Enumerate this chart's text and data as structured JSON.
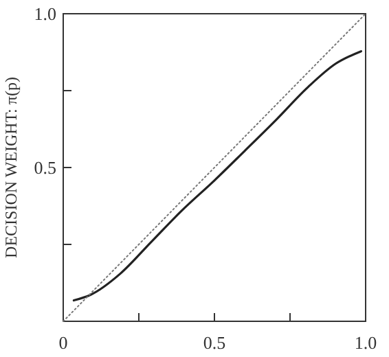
{
  "chart_data": {
    "type": "line",
    "ylabel": "DECISION WEIGHT: π(p)",
    "xlim": [
      0,
      1
    ],
    "ylim": [
      0,
      1
    ],
    "xticks": [
      0,
      {
        "value": 0.25,
        "label": null
      },
      0.5,
      {
        "value": 0.75,
        "label": null
      },
      {
        "value": 1,
        "label": "1.0"
      }
    ],
    "yticks": [
      {
        "value": 0.25,
        "label": null
      },
      0.5,
      {
        "value": 0.75,
        "label": null
      },
      {
        "value": 1,
        "label": "1.0"
      }
    ],
    "grid": false,
    "series": [
      {
        "color": "#222222",
        "line_style": "solid",
        "x": [
          0.035,
          0.09,
          0.19,
          0.29,
          0.39,
          0.5,
          0.6,
          0.7,
          0.81,
          0.9,
          0.985
        ],
        "values": [
          0.068,
          0.086,
          0.156,
          0.257,
          0.358,
          0.458,
          0.554,
          0.651,
          0.762,
          0.837,
          0.878
        ]
      },
      {
        "color": "#777777",
        "line_style": "dotted",
        "x": [
          0,
          1
        ],
        "values": [
          0,
          1
        ]
      }
    ]
  }
}
